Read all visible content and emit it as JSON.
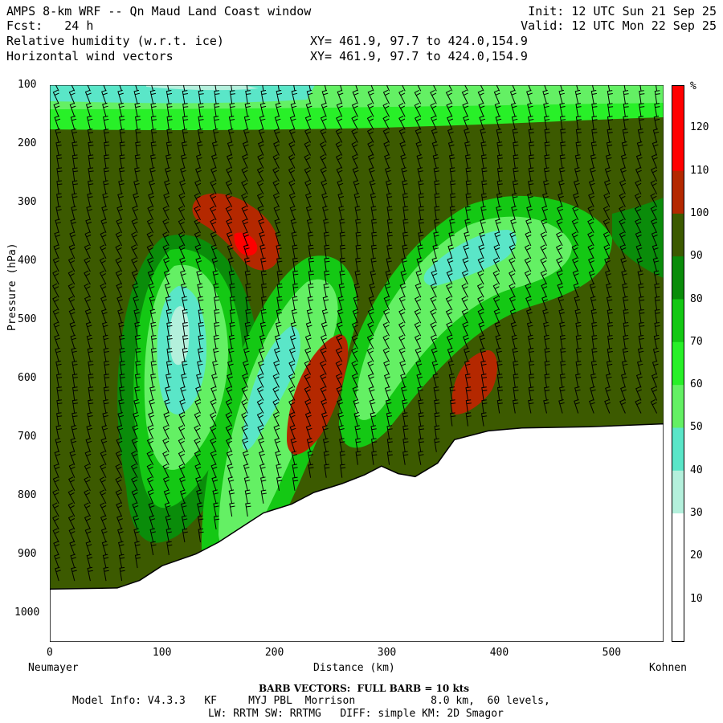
{
  "header": {
    "line1_left": "AMPS 8-km WRF -- Qn Maud Land Coast window",
    "line1_right": "Init: 12 UTC Sun 21 Sep 25",
    "line2_left": "Fcst:   24 h",
    "line2_right": "Valid: 12 UTC Mon 22 Sep 25",
    "line3_left": "Relative humidity (w.r.t. ice)",
    "line3_right": "XY= 461.9, 97.7 to 424.0,154.9",
    "line4_left": "Horizontal wind vectors",
    "line4_right": "XY= 461.9, 97.7 to 424.0,154.9"
  },
  "footer": {
    "left_endpoint": "Neumayer",
    "right_endpoint": "Kohnen",
    "barb_note": "BARB VECTORS:  FULL BARB = 10 kts",
    "model_info": "Model Info: V4.3.3   KF     MYJ PBL  Morrison            8.0 km,  60 levels,",
    "physics_info": "LW: RRTM SW: RRTMG   DIFF: simple KM: 2D Smagor"
  },
  "chart_data": {
    "type": "heatmap",
    "xlabel": "Distance (km)",
    "ylabel": "Pressure (hPa)",
    "xlim": [
      0,
      546
    ],
    "ylim": [
      1050,
      100
    ],
    "x_ticks": [
      0,
      100,
      200,
      300,
      400,
      500
    ],
    "y_ticks": [
      100,
      200,
      300,
      400,
      500,
      600,
      700,
      800,
      900,
      1000
    ],
    "colorbar": {
      "unit": "%",
      "levels": [
        10,
        20,
        30,
        40,
        50,
        60,
        70,
        80,
        90,
        100,
        110,
        120
      ],
      "colors": [
        "#ffffff",
        "#ffffff",
        "#ffffff",
        "#b4f0dc",
        "#5ae6c8",
        "#64f064",
        "#28f028",
        "#14c814",
        "#0a8c0a",
        "#3c5a00",
        "#b42800",
        "#ff0000",
        "#ff0000"
      ]
    },
    "terrain_surface": [
      {
        "x": 0,
        "p": 960
      },
      {
        "x": 60,
        "p": 958
      },
      {
        "x": 80,
        "p": 945
      },
      {
        "x": 100,
        "p": 920
      },
      {
        "x": 130,
        "p": 900
      },
      {
        "x": 150,
        "p": 880
      },
      {
        "x": 170,
        "p": 855
      },
      {
        "x": 190,
        "p": 830
      },
      {
        "x": 215,
        "p": 815
      },
      {
        "x": 235,
        "p": 795
      },
      {
        "x": 260,
        "p": 780
      },
      {
        "x": 280,
        "p": 765
      },
      {
        "x": 295,
        "p": 750
      },
      {
        "x": 310,
        "p": 763
      },
      {
        "x": 325,
        "p": 768
      },
      {
        "x": 345,
        "p": 745
      },
      {
        "x": 360,
        "p": 705
      },
      {
        "x": 390,
        "p": 690
      },
      {
        "x": 420,
        "p": 685
      },
      {
        "x": 480,
        "p": 683
      },
      {
        "x": 546,
        "p": 678
      }
    ],
    "rh_features": [
      {
        "name": "upper-dry-layer",
        "x_range": [
          0,
          546
        ],
        "p_range": [
          100,
          160
        ],
        "value": 55
      },
      {
        "name": "dry-tongue-1",
        "center_x": 100,
        "center_p": 510,
        "value": 35
      },
      {
        "name": "dry-tongue-2",
        "center_x": 215,
        "center_p": 520,
        "value": 55
      },
      {
        "name": "dry-tongue-3",
        "center_x": 350,
        "center_p": 480,
        "value": 60
      },
      {
        "name": "moist-pocket-1",
        "center_x": 165,
        "center_p": 345,
        "value": 115
      },
      {
        "name": "moist-pocket-2",
        "center_x": 240,
        "center_p": 600,
        "value": 115
      },
      {
        "name": "moist-pocket-3",
        "center_x": 385,
        "center_p": 605,
        "value": 115
      }
    ]
  }
}
